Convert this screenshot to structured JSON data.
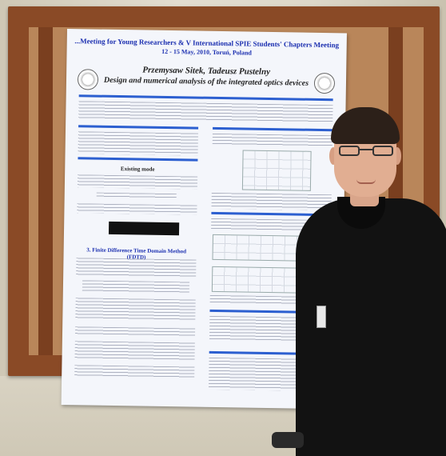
{
  "poster": {
    "header_line1": "...Meeting for Young Researchers & V International SPIE Students' Chapters Meeting",
    "header_line2": "12 - 15 May, 2010, Toruń, Poland",
    "authors": "Przemysaw Sitek, Tadeusz Pustelny",
    "title": "Design and numerical analysis of the integrated optics devices",
    "section_integrity": "Existing mode",
    "section_method": "3. Finite Difference Time Domain Method (FDTD)"
  },
  "colors": {
    "poster_accent": "#2c5fd0",
    "board_frame": "#8a4a26",
    "jacket": "#121212"
  }
}
